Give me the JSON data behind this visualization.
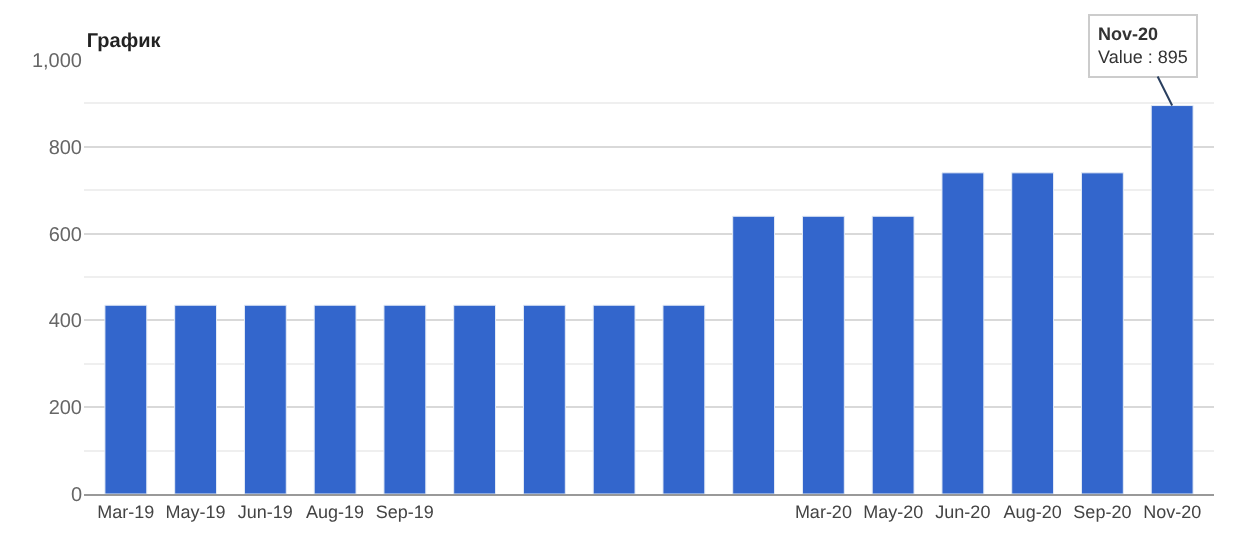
{
  "chart_data": {
    "type": "bar",
    "title": "График",
    "categories": [
      "Mar-19",
      "May-19",
      "Jun-19",
      "Aug-19",
      "Sep-19",
      null,
      null,
      null,
      null,
      null,
      "Mar-20",
      "May-20",
      "Jun-20",
      "Aug-20",
      "Sep-20",
      "Nov-20"
    ],
    "values": [
      435,
      435,
      435,
      435,
      435,
      435,
      435,
      435,
      435,
      640,
      640,
      640,
      740,
      740,
      740,
      895
    ],
    "color": "#3366cc",
    "ylim": [
      0,
      1000
    ],
    "yticks": [
      0,
      200,
      400,
      600,
      800,
      {
        "value": 1000,
        "label": "1,000"
      }
    ],
    "grid": "y",
    "annotations": [
      {
        "text": "Nov-20\nValue : 895",
        "x": "Nov-20",
        "y": 895
      }
    ]
  }
}
